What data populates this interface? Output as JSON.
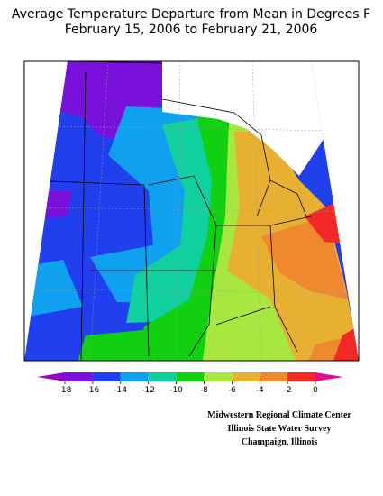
{
  "title": [
    "Average Temperature Departure from Mean in Degrees F",
    "February 15, 2006 to February 21, 2006"
  ],
  "legend": {
    "ticks": [
      -18,
      -16,
      -14,
      -12,
      -10,
      -8,
      -6,
      -4,
      -2,
      0
    ],
    "colors": [
      "#9a00c8",
      "#7a10dc",
      "#2040f0",
      "#10a0f0",
      "#10d0a0",
      "#10d010",
      "#a8e640",
      "#e8b030",
      "#f08830",
      "#f52828",
      "#e0108c"
    ]
  },
  "credits": [
    "Midwestern Regional Climate Center",
    "Illinois State Water Survey",
    "Champaign, Illinois"
  ]
}
